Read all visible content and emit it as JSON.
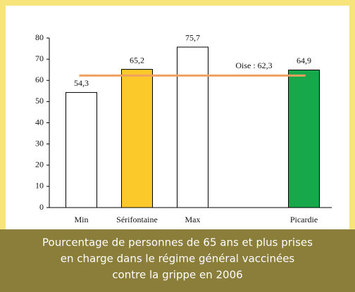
{
  "chart_data": {
    "type": "bar",
    "categories": [
      "Min",
      "Sérifontaine",
      "Max",
      null,
      "Picardie"
    ],
    "values": [
      54.3,
      65.2,
      75.7,
      null,
      64.9
    ],
    "value_labels": [
      "54,3",
      "65,2",
      "75,7",
      null,
      "64,9"
    ],
    "colors": [
      "#ffffff",
      "#fcc92b",
      "#ffffff",
      null,
      "#16a84a"
    ],
    "ylim": [
      0,
      80
    ],
    "yticks": [
      0,
      10,
      20,
      30,
      40,
      50,
      60,
      70,
      80
    ],
    "reference": {
      "label": "Oise : 62,3",
      "value": 62.3,
      "color": "#f0a060"
    },
    "caption": [
      "Pourcentage de personnes de 65 ans et plus prises",
      "en charge dans le régime général vaccinées",
      "contre la grippe en 2006"
    ]
  }
}
